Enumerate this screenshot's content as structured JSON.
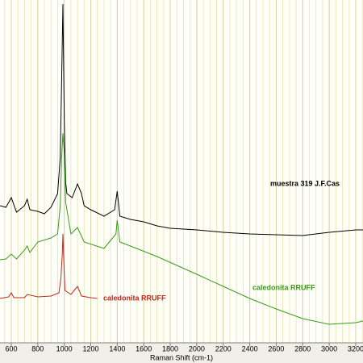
{
  "chart_data": {
    "type": "line",
    "x_label": "Raman Shift (cm-1)",
    "xlim": [
      515,
      3255
    ],
    "ylim": [
      0,
      425
    ],
    "xticks": [
      600,
      800,
      1000,
      1200,
      1400,
      1600,
      1800,
      2000,
      2200,
      2400,
      2600,
      2800,
      3000,
      3200
    ],
    "grid": true,
    "series": [
      {
        "name": "muestra 319 J.F.Cas",
        "color": "#000000",
        "x": [
          515,
          560,
          600,
          640,
          700,
          720,
          740,
          800,
          850,
          900,
          950,
          970,
          980,
          990,
          1000,
          1010,
          1020,
          1060,
          1100,
          1130,
          1150,
          1200,
          1300,
          1380,
          1400,
          1420,
          1500,
          1600,
          1700,
          1800,
          2000,
          2200,
          2400,
          2600,
          2800,
          3000,
          3200,
          3255
        ],
        "values": [
          170,
          168,
          180,
          162,
          170,
          178,
          165,
          163,
          160,
          168,
          185,
          230,
          325,
          420,
          275,
          200,
          185,
          180,
          197,
          185,
          170,
          165,
          157,
          165,
          188,
          157,
          153,
          150,
          145,
          142,
          140,
          137,
          135,
          134,
          133,
          137,
          140,
          140
        ]
      },
      {
        "name": "caledonita RRUFF",
        "color": "#3a9a1a",
        "x": [
          515,
          560,
          600,
          640,
          700,
          720,
          740,
          800,
          900,
          950,
          970,
          980,
          990,
          1000,
          1010,
          1050,
          1100,
          1150,
          1300,
          1390,
          1400,
          1420,
          1500,
          1700,
          2000,
          2200,
          2400,
          2600,
          2800,
          3000,
          3200,
          3255
        ],
        "values": [
          103,
          104,
          110,
          104,
          115,
          120,
          112,
          125,
          130,
          135,
          170,
          230,
          260,
          235,
          175,
          135,
          143,
          125,
          117,
          135,
          152,
          125,
          120,
          107,
          85,
          70,
          55,
          42,
          30,
          23,
          25,
          27
        ]
      },
      {
        "name": "caledonita RRUFF",
        "color": "#c0281c",
        "x": [
          515,
          580,
          600,
          620,
          700,
          720,
          800,
          900,
          960,
          975,
          985,
          990,
          995,
          1005,
          1050,
          1100,
          1130,
          1200,
          1250
        ],
        "values": [
          55,
          57,
          62,
          56,
          56,
          60,
          57,
          58,
          62,
          80,
          110,
          135,
          110,
          65,
          60,
          70,
          58,
          56,
          55
        ]
      }
    ]
  }
}
